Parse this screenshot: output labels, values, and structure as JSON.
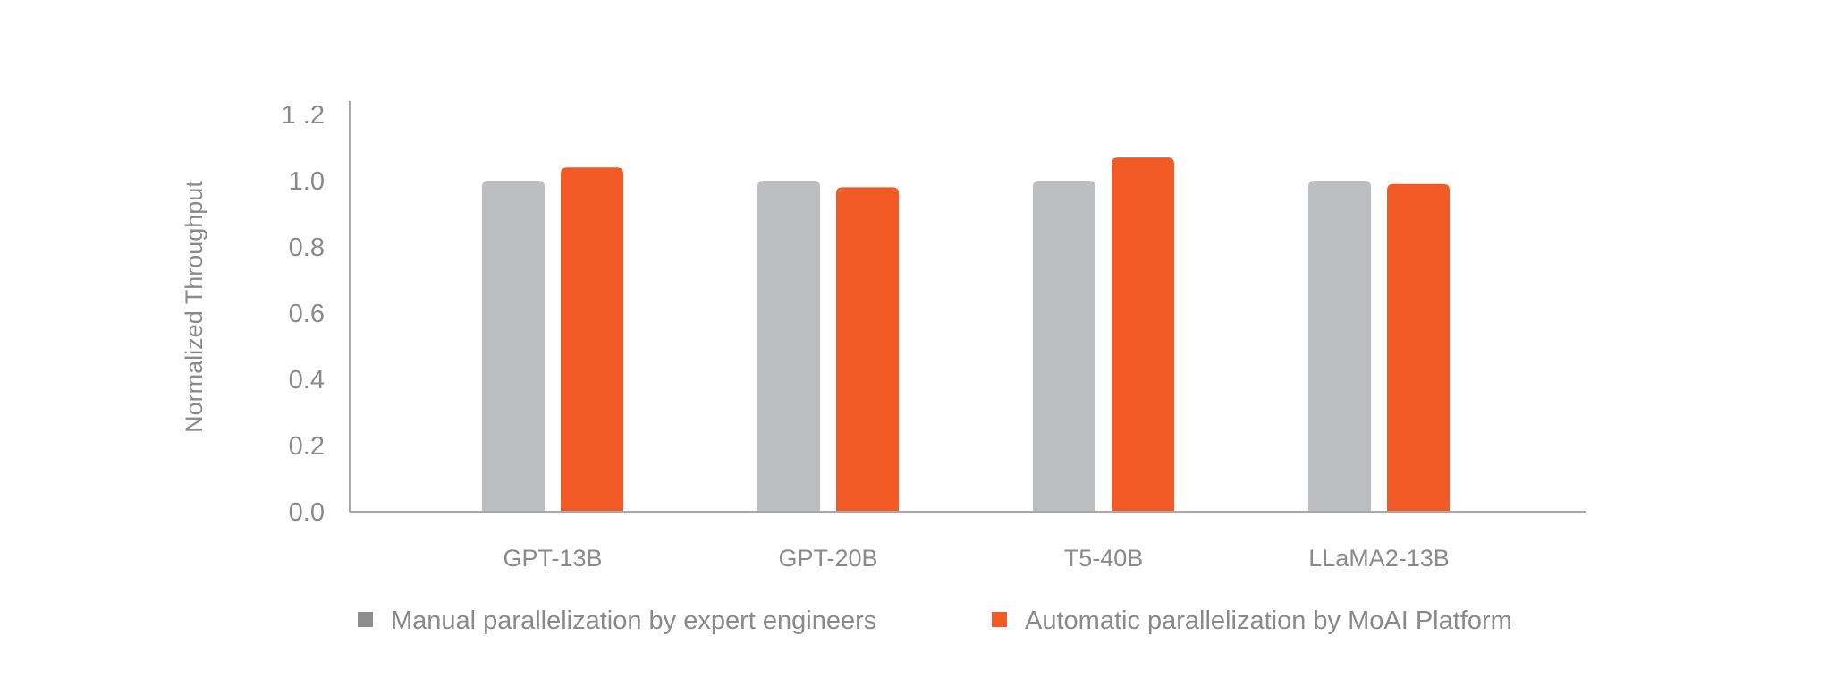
{
  "chart_data": {
    "type": "bar",
    "title": "",
    "xlabel": "",
    "ylabel": "Normalized Throughput",
    "categories": [
      "GPT-13B",
      "GPT-20B",
      "T5-40B",
      "LLaMA2-13B"
    ],
    "series": [
      {
        "name": "Manual parallelization by expert engineers",
        "color": "#bcbdbf",
        "legend_color": "#8e8e8e",
        "values": [
          1.0,
          1.0,
          1.0,
          1.0
        ]
      },
      {
        "name": "Automatic parallelization by MoAI Platform",
        "color": "#f15a24",
        "legend_color": "#f15a24",
        "values": [
          1.04,
          0.98,
          1.07,
          0.99
        ]
      }
    ],
    "ylim": [
      0,
      1.2
    ],
    "yticks": [
      "0.0",
      "0.2",
      "0.4",
      "0.6",
      "0.8",
      "1.0",
      "1 .2"
    ],
    "grid": false,
    "legend_position": "bottom",
    "axis_color": "#a8a8a8"
  }
}
